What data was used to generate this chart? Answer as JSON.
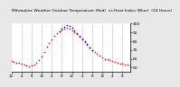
{
  "title": "Milwaukee Weather Outdoor Temperature (Red)  vs Heat Index (Blue)  (24 Hours)",
  "background_color": "#e8e8e8",
  "plot_bg_color": "#ffffff",
  "grid_color": "#aaaaaa",
  "red_color": "#ff0000",
  "blue_color": "#0000ff",
  "x_values": [
    0,
    1,
    2,
    3,
    4,
    5,
    6,
    7,
    8,
    9,
    10,
    11,
    12,
    13,
    14,
    15,
    16,
    17,
    18,
    19,
    20,
    21,
    22,
    23,
    24,
    25,
    26,
    27,
    28,
    29,
    30,
    31,
    32,
    33,
    34,
    35,
    36,
    37,
    38,
    39,
    40,
    41,
    42,
    43,
    44,
    45,
    46,
    47
  ],
  "temp_values": [
    57,
    56,
    55,
    55,
    54,
    53,
    52,
    51,
    52,
    53,
    55,
    58,
    63,
    68,
    74,
    78,
    82,
    86,
    89,
    91,
    93,
    94,
    95,
    94,
    92,
    90,
    88,
    85,
    82,
    79,
    76,
    73,
    70,
    68,
    66,
    64,
    62,
    60,
    59,
    58,
    57,
    56,
    55,
    54,
    54,
    53,
    53,
    52
  ],
  "heat_values": [
    null,
    null,
    null,
    null,
    null,
    null,
    null,
    null,
    null,
    null,
    null,
    null,
    null,
    null,
    null,
    null,
    null,
    null,
    null,
    91,
    94,
    96,
    98,
    97,
    95,
    92,
    89,
    86,
    83,
    80,
    77,
    73,
    70,
    null,
    null,
    null,
    null,
    null,
    null,
    null,
    null,
    null,
    null,
    null,
    null,
    null,
    null,
    null
  ],
  "ylim": [
    45,
    100
  ],
  "xlim": [
    0,
    47
  ],
  "yticks": [
    50,
    60,
    70,
    80,
    90,
    100
  ],
  "ytick_labels": [
    "50",
    "60",
    "70",
    "80",
    "90",
    "100"
  ],
  "xtick_positions": [
    0,
    4,
    8,
    12,
    16,
    20,
    24,
    28,
    32,
    36,
    40,
    44
  ],
  "xtick_labels": [
    "12",
    "4",
    "8",
    "12",
    "4",
    "8",
    "12",
    "4",
    "8",
    "12",
    "4",
    "8"
  ],
  "grid_positions": [
    4,
    8,
    12,
    16,
    20,
    24,
    28,
    32,
    36,
    40,
    44
  ],
  "marker_size": 1.2,
  "linewidth": 0.0,
  "title_fontsize": 3.2,
  "tick_fontsize": 3.0,
  "ytick_fontsize": 3.2
}
